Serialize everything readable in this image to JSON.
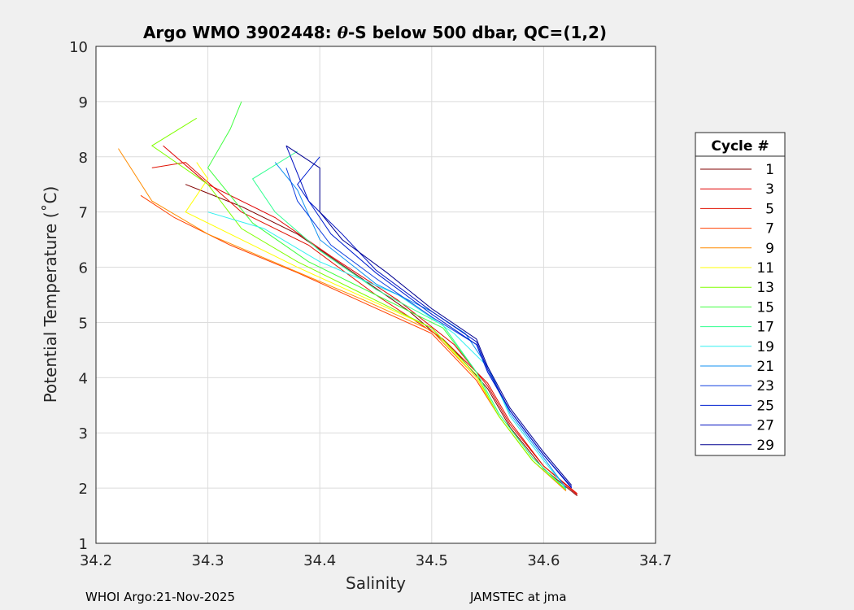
{
  "chart_data": {
    "type": "line",
    "title_prefix": "Argo WMO 3902448: ",
    "title_theta": "θ",
    "title_suffix": "-S below 500 dbar,  QC=(1,2)",
    "xlabel": "Salinity",
    "ylabel": "Potential Temperature (˚C)",
    "xlim": [
      34.2,
      34.7
    ],
    "ylim": [
      1,
      10
    ],
    "xticks": [
      "34.2",
      "34.3",
      "34.4",
      "34.5",
      "34.6",
      "34.7"
    ],
    "yticks": [
      "1",
      "2",
      "3",
      "4",
      "5",
      "6",
      "7",
      "8",
      "9",
      "10"
    ],
    "grid": true,
    "legend": {
      "title": "Cycle #",
      "placement": "right"
    },
    "series": [
      {
        "name": "1",
        "color": "#800000",
        "points": [
          [
            34.63,
            1.86
          ],
          [
            34.6,
            2.35
          ],
          [
            34.57,
            3.1
          ],
          [
            34.55,
            3.8
          ],
          [
            34.52,
            4.5
          ],
          [
            34.48,
            5.2
          ],
          [
            34.43,
            5.9
          ],
          [
            34.38,
            6.6
          ],
          [
            34.33,
            7.1
          ],
          [
            34.28,
            7.5
          ]
        ]
      },
      {
        "name": "3",
        "color": "#e00000",
        "points": [
          [
            34.63,
            1.88
          ],
          [
            34.6,
            2.4
          ],
          [
            34.57,
            3.15
          ],
          [
            34.55,
            3.85
          ],
          [
            34.52,
            4.6
          ],
          [
            34.47,
            5.4
          ],
          [
            34.41,
            6.2
          ],
          [
            34.36,
            6.9
          ],
          [
            34.3,
            7.5
          ],
          [
            34.26,
            8.2
          ]
        ]
      },
      {
        "name": "5",
        "color": "#e01000",
        "points": [
          [
            34.63,
            1.9
          ],
          [
            34.6,
            2.4
          ],
          [
            34.57,
            3.2
          ],
          [
            34.55,
            3.9
          ],
          [
            34.51,
            4.7
          ],
          [
            34.45,
            5.5
          ],
          [
            34.39,
            6.4
          ],
          [
            34.33,
            7.0
          ],
          [
            34.28,
            7.9
          ],
          [
            34.25,
            7.8
          ]
        ]
      },
      {
        "name": "7",
        "color": "#ff4000",
        "points": [
          [
            34.62,
            1.95
          ],
          [
            34.59,
            2.5
          ],
          [
            34.56,
            3.3
          ],
          [
            34.54,
            3.95
          ],
          [
            34.5,
            4.8
          ],
          [
            34.44,
            5.35
          ],
          [
            34.38,
            5.9
          ],
          [
            34.32,
            6.4
          ],
          [
            34.27,
            6.9
          ],
          [
            34.24,
            7.3
          ]
        ]
      },
      {
        "name": "9",
        "color": "#ff8c00",
        "points": [
          [
            34.62,
            1.95
          ],
          [
            34.59,
            2.5
          ],
          [
            34.56,
            3.3
          ],
          [
            34.54,
            4.0
          ],
          [
            34.5,
            4.85
          ],
          [
            34.44,
            5.4
          ],
          [
            34.37,
            6.0
          ],
          [
            34.3,
            6.6
          ],
          [
            34.25,
            7.2
          ],
          [
            34.22,
            8.15
          ]
        ]
      },
      {
        "name": "11",
        "color": "#ffff00",
        "points": [
          [
            34.62,
            1.97
          ],
          [
            34.59,
            2.5
          ],
          [
            34.56,
            3.3
          ],
          [
            34.54,
            4.0
          ],
          [
            34.5,
            4.9
          ],
          [
            34.44,
            5.45
          ],
          [
            34.38,
            6.0
          ],
          [
            34.32,
            6.6
          ],
          [
            34.28,
            7.0
          ],
          [
            34.3,
            7.6
          ],
          [
            34.29,
            7.9
          ]
        ]
      },
      {
        "name": "13",
        "color": "#80ff00",
        "points": [
          [
            34.62,
            1.97
          ],
          [
            34.59,
            2.5
          ],
          [
            34.56,
            3.3
          ],
          [
            34.54,
            4.05
          ],
          [
            34.5,
            4.9
          ],
          [
            34.44,
            5.5
          ],
          [
            34.38,
            6.1
          ],
          [
            34.33,
            6.7
          ],
          [
            34.3,
            7.5
          ],
          [
            34.25,
            8.2
          ],
          [
            34.29,
            8.7
          ]
        ]
      },
      {
        "name": "15",
        "color": "#40ff40",
        "points": [
          [
            34.62,
            1.98
          ],
          [
            34.59,
            2.55
          ],
          [
            34.56,
            3.35
          ],
          [
            34.54,
            4.1
          ],
          [
            34.51,
            4.9
          ],
          [
            34.45,
            5.5
          ],
          [
            34.39,
            6.1
          ],
          [
            34.34,
            6.8
          ],
          [
            34.3,
            7.8
          ],
          [
            34.32,
            8.5
          ],
          [
            34.33,
            9.0
          ]
        ]
      },
      {
        "name": "17",
        "color": "#30ff90",
        "points": [
          [
            34.62,
            1.98
          ],
          [
            34.59,
            2.55
          ],
          [
            34.56,
            3.35
          ],
          [
            34.54,
            4.1
          ],
          [
            34.51,
            4.95
          ],
          [
            34.45,
            5.6
          ],
          [
            34.4,
            6.3
          ],
          [
            34.36,
            7.0
          ],
          [
            34.34,
            7.6
          ],
          [
            34.38,
            8.1
          ]
        ]
      },
      {
        "name": "19",
        "color": "#30f0f0",
        "points": [
          [
            34.62,
            2.0
          ],
          [
            34.6,
            2.5
          ],
          [
            34.57,
            3.3
          ],
          [
            34.55,
            4.2
          ],
          [
            34.52,
            4.8
          ],
          [
            34.47,
            5.5
          ],
          [
            34.4,
            6.1
          ],
          [
            34.35,
            6.7
          ],
          [
            34.3,
            7.0
          ]
        ]
      },
      {
        "name": "21",
        "color": "#1090f0",
        "points": [
          [
            34.62,
            2.0
          ],
          [
            34.6,
            2.55
          ],
          [
            34.57,
            3.35
          ],
          [
            34.55,
            4.2
          ],
          [
            34.53,
            4.8
          ],
          [
            34.5,
            5.2
          ],
          [
            34.45,
            5.7
          ],
          [
            34.4,
            6.5
          ],
          [
            34.38,
            7.4
          ],
          [
            34.36,
            7.9
          ]
        ]
      },
      {
        "name": "23",
        "color": "#1040e0",
        "points": [
          [
            34.625,
            2.0
          ],
          [
            34.6,
            2.6
          ],
          [
            34.57,
            3.4
          ],
          [
            34.55,
            4.1
          ],
          [
            34.54,
            4.6
          ],
          [
            34.5,
            5.1
          ],
          [
            34.45,
            5.8
          ],
          [
            34.41,
            6.4
          ],
          [
            34.38,
            7.2
          ],
          [
            34.37,
            7.8
          ]
        ]
      },
      {
        "name": "25",
        "color": "#0020d0",
        "points": [
          [
            34.625,
            2.0
          ],
          [
            34.6,
            2.6
          ],
          [
            34.57,
            3.4
          ],
          [
            34.55,
            4.1
          ],
          [
            34.54,
            4.6
          ],
          [
            34.5,
            5.15
          ],
          [
            34.45,
            5.9
          ],
          [
            34.41,
            6.6
          ],
          [
            34.38,
            7.5
          ],
          [
            34.4,
            8.0
          ]
        ]
      },
      {
        "name": "27",
        "color": "#0010c0",
        "points": [
          [
            34.625,
            2.02
          ],
          [
            34.6,
            2.6
          ],
          [
            34.57,
            3.4
          ],
          [
            34.55,
            4.15
          ],
          [
            34.54,
            4.65
          ],
          [
            34.5,
            5.2
          ],
          [
            34.45,
            5.95
          ],
          [
            34.42,
            6.6
          ],
          [
            34.39,
            7.2
          ],
          [
            34.37,
            8.2
          ]
        ]
      },
      {
        "name": "29",
        "color": "#000090",
        "points": [
          [
            34.625,
            2.05
          ],
          [
            34.6,
            2.65
          ],
          [
            34.57,
            3.45
          ],
          [
            34.55,
            4.2
          ],
          [
            34.54,
            4.7
          ],
          [
            34.5,
            5.25
          ],
          [
            34.46,
            5.9
          ],
          [
            34.42,
            6.5
          ],
          [
            34.4,
            7.0
          ],
          [
            34.4,
            7.8
          ],
          [
            34.37,
            8.2
          ]
        ]
      }
    ]
  },
  "footer": {
    "left": "WHOI Argo:21-Nov-2025",
    "right": "JAMSTEC at jma"
  }
}
